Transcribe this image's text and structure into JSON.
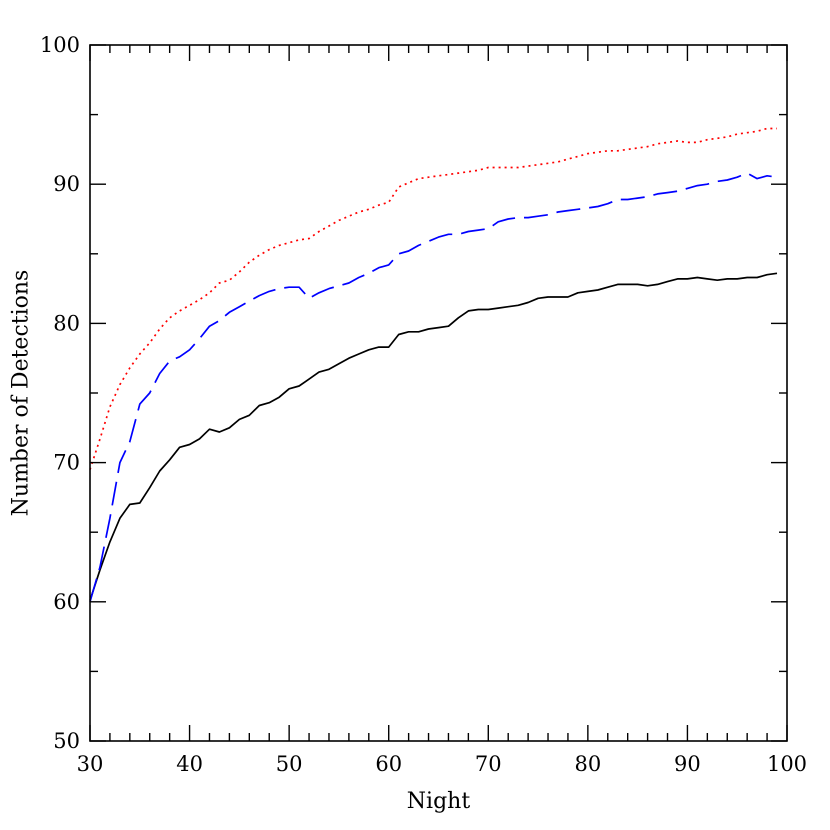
{
  "chart_data": {
    "type": "line",
    "xlabel": "Night",
    "ylabel": "Number of Detections",
    "xlim": [
      30,
      100
    ],
    "ylim": [
      50,
      100
    ],
    "x_ticks": [
      30,
      40,
      50,
      60,
      70,
      80,
      90,
      100
    ],
    "y_ticks": [
      50,
      60,
      70,
      80,
      90,
      100
    ],
    "x_tick_labels": [
      "30",
      "40",
      "50",
      "60",
      "70",
      "80",
      "90",
      "100"
    ],
    "y_tick_labels": [
      "50",
      "60",
      "70",
      "80",
      "90",
      "100"
    ],
    "grid": false,
    "legend": "none",
    "series": [
      {
        "color": "#000000",
        "style": "solid",
        "x": [
          30,
          31,
          32,
          33,
          34,
          35,
          36,
          37,
          38,
          39,
          40,
          41,
          42,
          43,
          44,
          45,
          46,
          47,
          48,
          49,
          50,
          51,
          52,
          53,
          54,
          55,
          56,
          57,
          58,
          59,
          60,
          61,
          62,
          63,
          64,
          65,
          66,
          67,
          68,
          69,
          70,
          71,
          72,
          73,
          74,
          75,
          76,
          77,
          78,
          79,
          80,
          81,
          82,
          83,
          84,
          85,
          86,
          87,
          88,
          89,
          90,
          91,
          92,
          93,
          94,
          95,
          96,
          97,
          98,
          99
        ],
        "y": [
          60.1,
          62.3,
          64.3,
          66.0,
          67.0,
          67.1,
          68.2,
          69.4,
          70.2,
          71.1,
          71.3,
          71.7,
          72.4,
          72.2,
          72.5,
          73.1,
          73.4,
          74.1,
          74.3,
          74.7,
          75.3,
          75.5,
          76.0,
          76.5,
          76.7,
          77.1,
          77.5,
          77.8,
          78.1,
          78.3,
          78.3,
          79.2,
          79.4,
          79.4,
          79.6,
          79.7,
          79.8,
          80.4,
          80.9,
          81.0,
          81.0,
          81.1,
          81.2,
          81.3,
          81.5,
          81.8,
          81.9,
          81.9,
          81.9,
          82.2,
          82.3,
          82.4,
          82.6,
          82.8,
          82.8,
          82.8,
          82.7,
          82.8,
          83.0,
          83.2,
          83.2,
          83.3,
          83.2,
          83.1,
          83.2,
          83.2,
          83.3,
          83.3,
          83.5,
          83.6
        ]
      },
      {
        "color": "#0000ff",
        "style": "dashed",
        "x": [
          30,
          31,
          32,
          33,
          34,
          35,
          36,
          37,
          38,
          39,
          40,
          41,
          42,
          43,
          44,
          45,
          46,
          47,
          48,
          49,
          50,
          51,
          52,
          53,
          54,
          55,
          56,
          57,
          58,
          59,
          60,
          61,
          62,
          63,
          64,
          65,
          66,
          67,
          68,
          69,
          70,
          71,
          72,
          73,
          74,
          75,
          76,
          77,
          78,
          79,
          80,
          81,
          82,
          83,
          84,
          85,
          86,
          87,
          88,
          89,
          90,
          91,
          92,
          93,
          94,
          95,
          96,
          97,
          98,
          99
        ],
        "y": [
          60.0,
          62.5,
          66.0,
          70.0,
          71.5,
          74.2,
          75.0,
          76.4,
          77.3,
          77.6,
          78.1,
          78.9,
          79.8,
          80.2,
          80.8,
          81.2,
          81.6,
          82.0,
          82.3,
          82.5,
          82.6,
          82.6,
          81.8,
          82.2,
          82.5,
          82.7,
          82.9,
          83.3,
          83.6,
          84.0,
          84.2,
          85.0,
          85.2,
          85.6,
          85.9,
          86.2,
          86.4,
          86.4,
          86.6,
          86.7,
          86.8,
          87.3,
          87.5,
          87.6,
          87.6,
          87.7,
          87.8,
          88.0,
          88.1,
          88.2,
          88.3,
          88.4,
          88.6,
          88.9,
          88.9,
          89.0,
          89.1,
          89.3,
          89.4,
          89.5,
          89.7,
          89.9,
          90.0,
          90.2,
          90.3,
          90.5,
          90.8,
          90.4,
          90.6,
          90.5
        ]
      },
      {
        "color": "#ff0000",
        "style": "dotted",
        "x": [
          30,
          31,
          32,
          33,
          34,
          35,
          36,
          37,
          38,
          39,
          40,
          41,
          42,
          43,
          44,
          45,
          46,
          47,
          48,
          49,
          50,
          51,
          52,
          53,
          54,
          55,
          56,
          57,
          58,
          59,
          60,
          61,
          62,
          63,
          64,
          65,
          66,
          67,
          68,
          69,
          70,
          71,
          72,
          73,
          74,
          75,
          76,
          77,
          78,
          79,
          80,
          81,
          82,
          83,
          84,
          85,
          86,
          87,
          88,
          89,
          90,
          91,
          92,
          93,
          94,
          95,
          96,
          97,
          98,
          99
        ],
        "y": [
          69.5,
          71.7,
          74.0,
          75.6,
          76.8,
          77.8,
          78.6,
          79.6,
          80.4,
          80.9,
          81.3,
          81.7,
          82.2,
          82.9,
          83.1,
          83.7,
          84.4,
          84.9,
          85.3,
          85.6,
          85.8,
          86.0,
          86.1,
          86.6,
          87.0,
          87.4,
          87.7,
          88.0,
          88.2,
          88.5,
          88.7,
          89.8,
          90.1,
          90.4,
          90.5,
          90.6,
          90.7,
          90.8,
          90.9,
          91.0,
          91.2,
          91.2,
          91.2,
          91.2,
          91.3,
          91.4,
          91.5,
          91.6,
          91.8,
          92.0,
          92.2,
          92.3,
          92.4,
          92.4,
          92.5,
          92.6,
          92.7,
          92.9,
          93.0,
          93.1,
          93.0,
          93.0,
          93.2,
          93.3,
          93.4,
          93.6,
          93.7,
          93.8,
          94.0,
          94.0
        ]
      }
    ]
  }
}
